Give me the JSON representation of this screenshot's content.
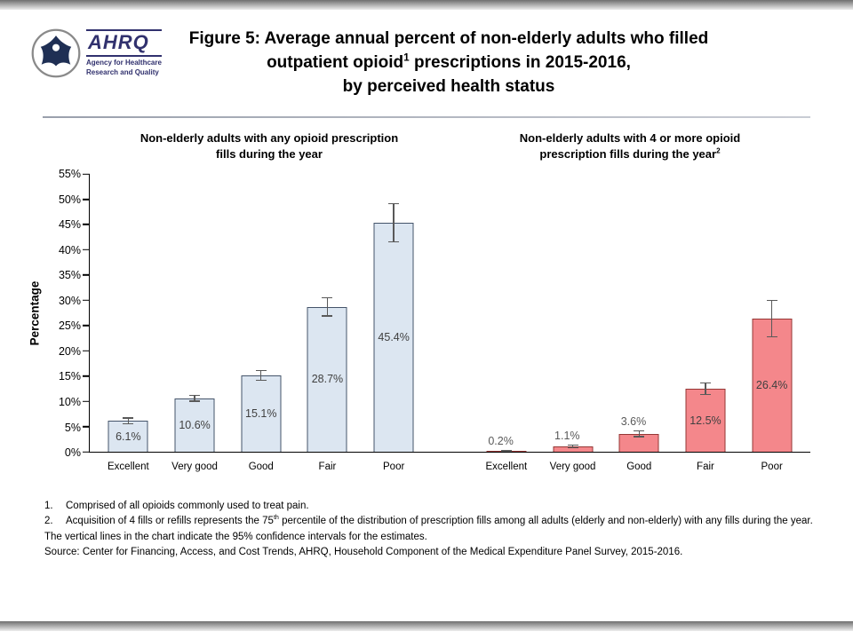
{
  "header": {
    "logo": {
      "org_abbr": "AHRQ",
      "org_line1": "Agency for Healthcare",
      "org_line2": "Research and Quality"
    },
    "title": {
      "line1": "Figure 5: Average annual percent of non-elderly adults who filled",
      "line2_pre": "outpatient opioid",
      "line2_sup": "1",
      "line2_post": " prescriptions in 2015-2016,",
      "line3": "by perceived health status"
    }
  },
  "chart_data": {
    "type": "bar",
    "ylabel": "Percentage",
    "ylim": [
      0,
      55
    ],
    "ytick_step": 5,
    "ytick_suffix": "%",
    "grid": false,
    "error_bar_color": "#595959",
    "categories": [
      "Excellent",
      "Very good",
      "Good",
      "Fair",
      "Poor"
    ],
    "panels": [
      {
        "title_lines": [
          "Non-elderly adults with any opioid prescription",
          "fills during the year"
        ],
        "values": [
          6.1,
          10.6,
          15.1,
          28.7,
          45.4
        ],
        "labels": [
          "6.1%",
          "10.6%",
          "15.1%",
          "28.7%",
          "45.4%"
        ],
        "ci": [
          0.7,
          0.7,
          1.1,
          1.9,
          3.9
        ],
        "fill": "#dce6f1",
        "border": "#44546a"
      },
      {
        "title_lines": [
          "Non-elderly adults with 4 or more opioid",
          "prescription fills during the year"
        ],
        "title_sup": "2",
        "values": [
          0.2,
          1.1,
          3.6,
          12.5,
          26.4
        ],
        "labels": [
          "0.2%",
          "1.1%",
          "3.6%",
          "12.5%",
          "26.4%"
        ],
        "ci": [
          0.15,
          0.4,
          0.7,
          1.3,
          3.7
        ],
        "fill": "#f4878b",
        "border": "#953735"
      }
    ]
  },
  "footnotes": {
    "item1_num": "1.",
    "item1_text": "Comprised of all opioids commonly used to treat pain.",
    "item2_num": "2.",
    "item2_pre": "Acquisition of 4 fills or refills represents the 75",
    "item2_sup": "th",
    "item2_post": " percentile of the distribution of prescription fills among all adults (elderly and non-elderly) with any fills during the year.",
    "ci_note": "The vertical lines in the chart indicate the 95% confidence intervals for the estimates.",
    "source": "Source: Center for Financing, Access, and Cost Trends, AHRQ, Household Component of the Medical Expenditure Panel Survey, 2015-2016."
  }
}
